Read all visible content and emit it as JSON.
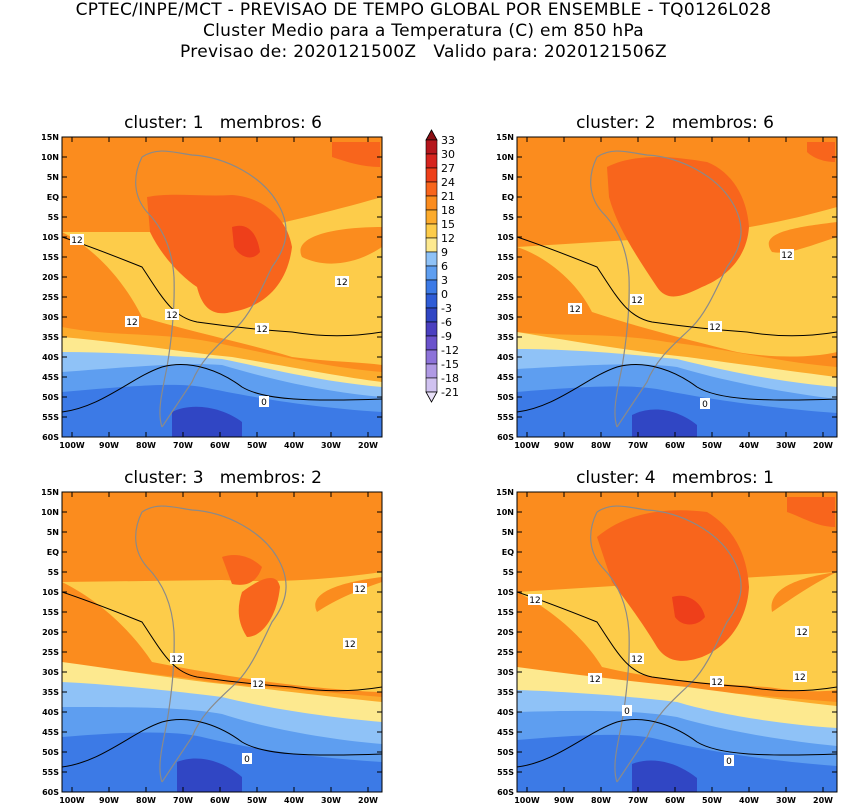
{
  "header": {
    "line1": "CPTEC/INPE/MCT - PREVISAO DE TEMPO GLOBAL POR ENSEMBLE - TQ0126L028",
    "line2": "Cluster Medio para a Temperatura (C) em 850 hPa",
    "line3": "Previsao de: 2020121500Z   Valido para: 2020121506Z"
  },
  "panels": [
    {
      "title": "cluster: 1   membros: 6",
      "labels12": 5,
      "labels0": 1
    },
    {
      "title": "cluster: 2   membros: 6",
      "labels12": 4,
      "labels0": 1
    },
    {
      "title": "cluster: 3   membros: 2",
      "labels12": 4,
      "labels0": 1
    },
    {
      "title": "cluster: 4   membros: 1",
      "labels12": 6,
      "labels0": 2
    }
  ],
  "axes": {
    "lat_labels": [
      "15N",
      "10N",
      "5N",
      "EQ",
      "5S",
      "10S",
      "15S",
      "20S",
      "25S",
      "30S",
      "35S",
      "40S",
      "45S",
      "50S",
      "55S",
      "60S"
    ],
    "lon_labels": [
      "100W",
      "90W",
      "80W",
      "70W",
      "60W",
      "50W",
      "40W",
      "30W",
      "20W"
    ]
  },
  "contour_labels": {
    "twelve": "12",
    "zero": "0"
  },
  "colorbar": {
    "levels": [
      "33",
      "30",
      "27",
      "24",
      "21",
      "18",
      "15",
      "12",
      "9",
      "6",
      "3",
      "0",
      "-3",
      "-6",
      "-9",
      "-12",
      "-15",
      "-18",
      "-21"
    ],
    "colors": [
      "#8b0f14",
      "#b5161c",
      "#d6241e",
      "#ee3f1a",
      "#f8651c",
      "#fb8c1e",
      "#fcab2c",
      "#fdcc4a",
      "#fde98f",
      "#8fc2f7",
      "#5e9ef0",
      "#3c7ae6",
      "#2f5cd6",
      "#3046c4",
      "#4a3fc0",
      "#6a52cc",
      "#8d73d9",
      "#b09ae4",
      "#d0c2f0",
      "#e8e0f8"
    ]
  }
}
